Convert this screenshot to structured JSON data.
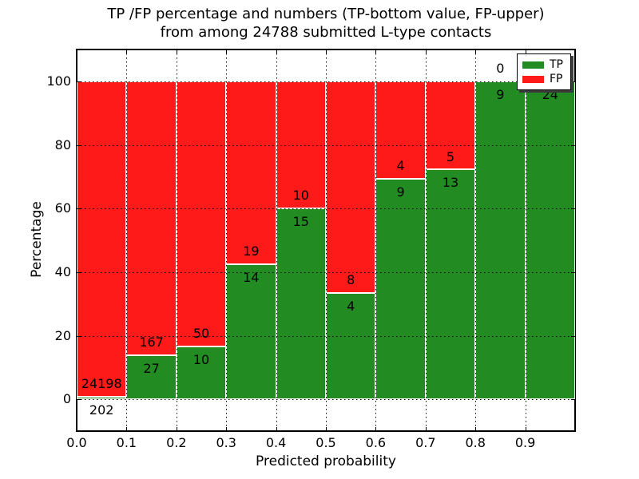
{
  "chart_data": {
    "type": "bar",
    "stacked": true,
    "title_line1": "TP /FP percentage and numbers (TP-bottom value, FP-upper)",
    "title_line2": "from among 24788 submitted L-type contacts",
    "xlabel": "Predicted probability",
    "ylabel": "Percentage",
    "xlim": [
      0.0,
      1.0
    ],
    "ylim": [
      -10,
      110
    ],
    "grid": true,
    "bin_width": 0.1,
    "bin_starts": [
      0.0,
      0.1,
      0.2,
      0.3,
      0.4,
      0.5,
      0.6,
      0.7,
      0.8,
      0.9
    ],
    "x_ticks": [
      {
        "value": 0.0,
        "label": "0.0"
      },
      {
        "value": 0.1,
        "label": "0.1"
      },
      {
        "value": 0.2,
        "label": "0.2"
      },
      {
        "value": 0.3,
        "label": "0.3"
      },
      {
        "value": 0.4,
        "label": "0.4"
      },
      {
        "value": 0.5,
        "label": "0.5"
      },
      {
        "value": 0.6,
        "label": "0.6"
      },
      {
        "value": 0.7,
        "label": "0.7"
      },
      {
        "value": 0.8,
        "label": "0.8"
      },
      {
        "value": 0.9,
        "label": "0.9"
      }
    ],
    "y_ticks": [
      {
        "value": 0,
        "label": "0"
      },
      {
        "value": 20,
        "label": "20"
      },
      {
        "value": 40,
        "label": "40"
      },
      {
        "value": 60,
        "label": "60"
      },
      {
        "value": 80,
        "label": "80"
      },
      {
        "value": 100,
        "label": "100"
      }
    ],
    "x_gridlines": [
      0.1,
      0.2,
      0.3,
      0.4,
      0.5,
      0.6,
      0.7,
      0.8,
      0.9
    ],
    "y_gridlines": [
      0,
      20,
      40,
      60,
      80,
      100
    ],
    "series": [
      {
        "name": "TP",
        "color": "#228b22",
        "values": [
          202,
          27,
          10,
          14,
          15,
          4,
          9,
          13,
          9,
          24
        ]
      },
      {
        "name": "FP",
        "color": "#ff1a1a",
        "values": [
          24198,
          167,
          50,
          19,
          10,
          8,
          4,
          5,
          0,
          null
        ]
      }
    ],
    "tp_percent": [
      0.83,
      13.92,
      16.67,
      42.42,
      60.0,
      33.33,
      69.23,
      72.22,
      100,
      100
    ],
    "tp_labels": [
      "202",
      "27",
      "10",
      "14",
      "15",
      "4",
      "9",
      "13",
      "9",
      "24"
    ],
    "fp_labels": [
      "24198",
      "167",
      "50",
      "19",
      "10",
      "8",
      "4",
      "5",
      "0",
      ""
    ],
    "legend": {
      "position": "upper right",
      "items": [
        {
          "label": "TP",
          "color": "#228b22"
        },
        {
          "label": "FP",
          "color": "#ff1a1a"
        }
      ]
    }
  }
}
